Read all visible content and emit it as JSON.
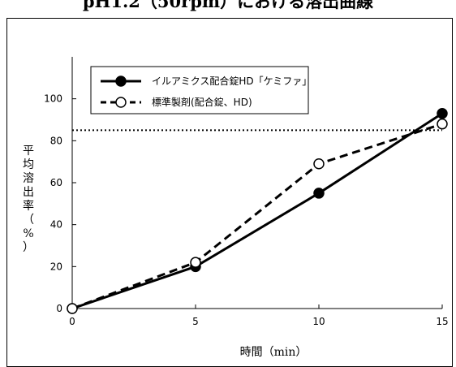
{
  "title": "pH1.2（50rpm）における溶出曲線",
  "chart_data": {
    "type": "line",
    "x": [
      0,
      5,
      10,
      15
    ],
    "series": [
      {
        "name": "イルアミクス配合錠HD「ケミファ」",
        "values": [
          0,
          20,
          55,
          93
        ],
        "style": "solid",
        "marker": "filled-circle",
        "color": "#000000"
      },
      {
        "name": "標準製剤(配合錠、HD)",
        "values": [
          0,
          22,
          69,
          88
        ],
        "style": "dashed",
        "marker": "open-circle",
        "color": "#000000"
      }
    ],
    "reference_line": {
      "y": 85,
      "style": "dotted"
    },
    "xlabel": "時間（min）",
    "ylabel": "平均溶出率（%）",
    "xlim": [
      0,
      15
    ],
    "ylim": [
      0,
      120
    ],
    "xticks": [
      0,
      5,
      10,
      15
    ],
    "yticks": [
      0,
      20,
      40,
      60,
      80,
      100
    ],
    "legend_position": "top-left",
    "grid": false
  }
}
